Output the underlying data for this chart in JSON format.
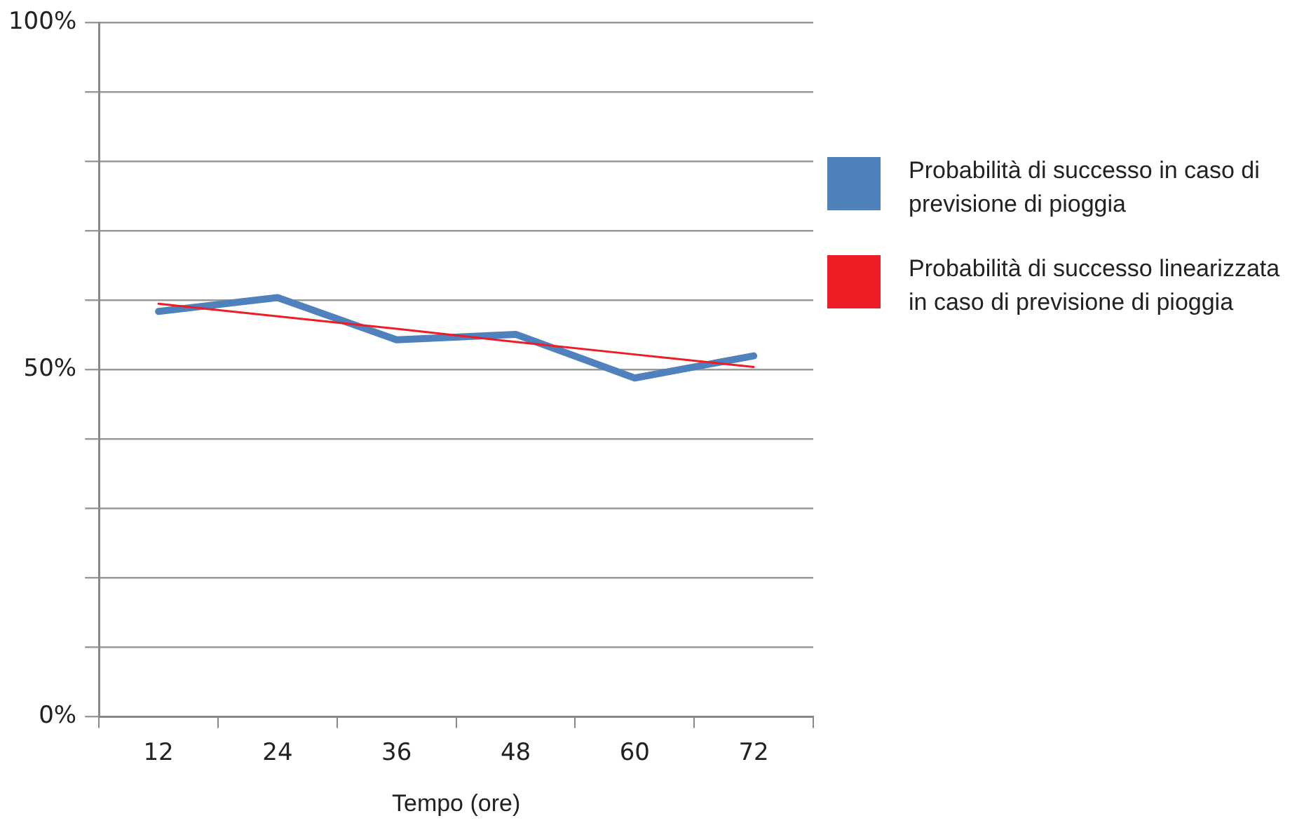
{
  "chart_data": {
    "type": "line",
    "xlabel": "Tempo (ore)",
    "categories": [
      "12",
      "24",
      "36",
      "48",
      "60",
      "72"
    ],
    "series": [
      {
        "name": "Probabilità di successo in caso di previsione di pioggia",
        "color": "#4f81bd",
        "values": [
          58.4,
          60.4,
          54.3,
          55.1,
          48.8,
          52.0
        ]
      },
      {
        "name": "Probabilità di successo linearizzata in caso di previsione di pioggia",
        "color": "#ee1c24",
        "values": [
          59.5,
          57.7,
          55.9,
          54.0,
          52.2,
          50.4
        ]
      }
    ],
    "ylim": [
      0,
      100
    ],
    "yticks": [
      {
        "value": 0,
        "label": "0%"
      },
      {
        "value": 10,
        "label": null
      },
      {
        "value": 20,
        "label": null
      },
      {
        "value": 30,
        "label": null
      },
      {
        "value": 40,
        "label": null
      },
      {
        "value": 50,
        "label": "50%"
      },
      {
        "value": 60,
        "label": null
      },
      {
        "value": 70,
        "label": null
      },
      {
        "value": 80,
        "label": null
      },
      {
        "value": 90,
        "label": null
      },
      {
        "value": 100,
        "label": "100%"
      }
    ],
    "grid": "y",
    "legend": "right",
    "marker": "none",
    "line_style": "solid"
  }
}
